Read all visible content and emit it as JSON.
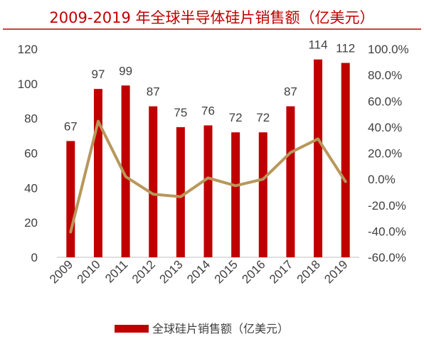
{
  "chart_data": {
    "type": "bar",
    "title": "2009-2019 年全球半导体硅片销售额（亿美元）",
    "categories": [
      "2009",
      "2010",
      "2011",
      "2012",
      "2013",
      "2014",
      "2015",
      "2016",
      "2017",
      "2018",
      "2019"
    ],
    "series": [
      {
        "name": "全球硅片销售额（亿美元）",
        "type": "bar",
        "axis": "left",
        "color": "#c00000",
        "values": [
          67,
          97,
          99,
          87,
          75,
          76,
          72,
          72,
          87,
          114,
          112
        ],
        "data_labels": [
          "67",
          "97",
          "99",
          "87",
          "75",
          "76",
          "72",
          "72",
          "87",
          "114",
          "112"
        ]
      },
      {
        "type": "line",
        "axis": "right",
        "color": "#b8975a",
        "values": [
          -40.5,
          44.5,
          2.0,
          -11.5,
          -13.5,
          1.0,
          -5.0,
          0.0,
          20.5,
          31.0,
          -1.8
        ]
      }
    ],
    "left_axis": {
      "min": 0,
      "max": 120,
      "step": 20,
      "ticks": [
        "0",
        "20",
        "40",
        "60",
        "80",
        "100",
        "120"
      ]
    },
    "right_axis": {
      "min": -60,
      "max": 100,
      "step": 20,
      "ticks": [
        "-60.0%",
        "-40.0%",
        "-20.0%",
        "0.0%",
        "20.0%",
        "40.0%",
        "60.0%",
        "80.0%",
        "100.0%"
      ]
    },
    "grid": false,
    "legend_position": "bottom",
    "legend": [
      "全球硅片销售额（亿美元）"
    ]
  }
}
